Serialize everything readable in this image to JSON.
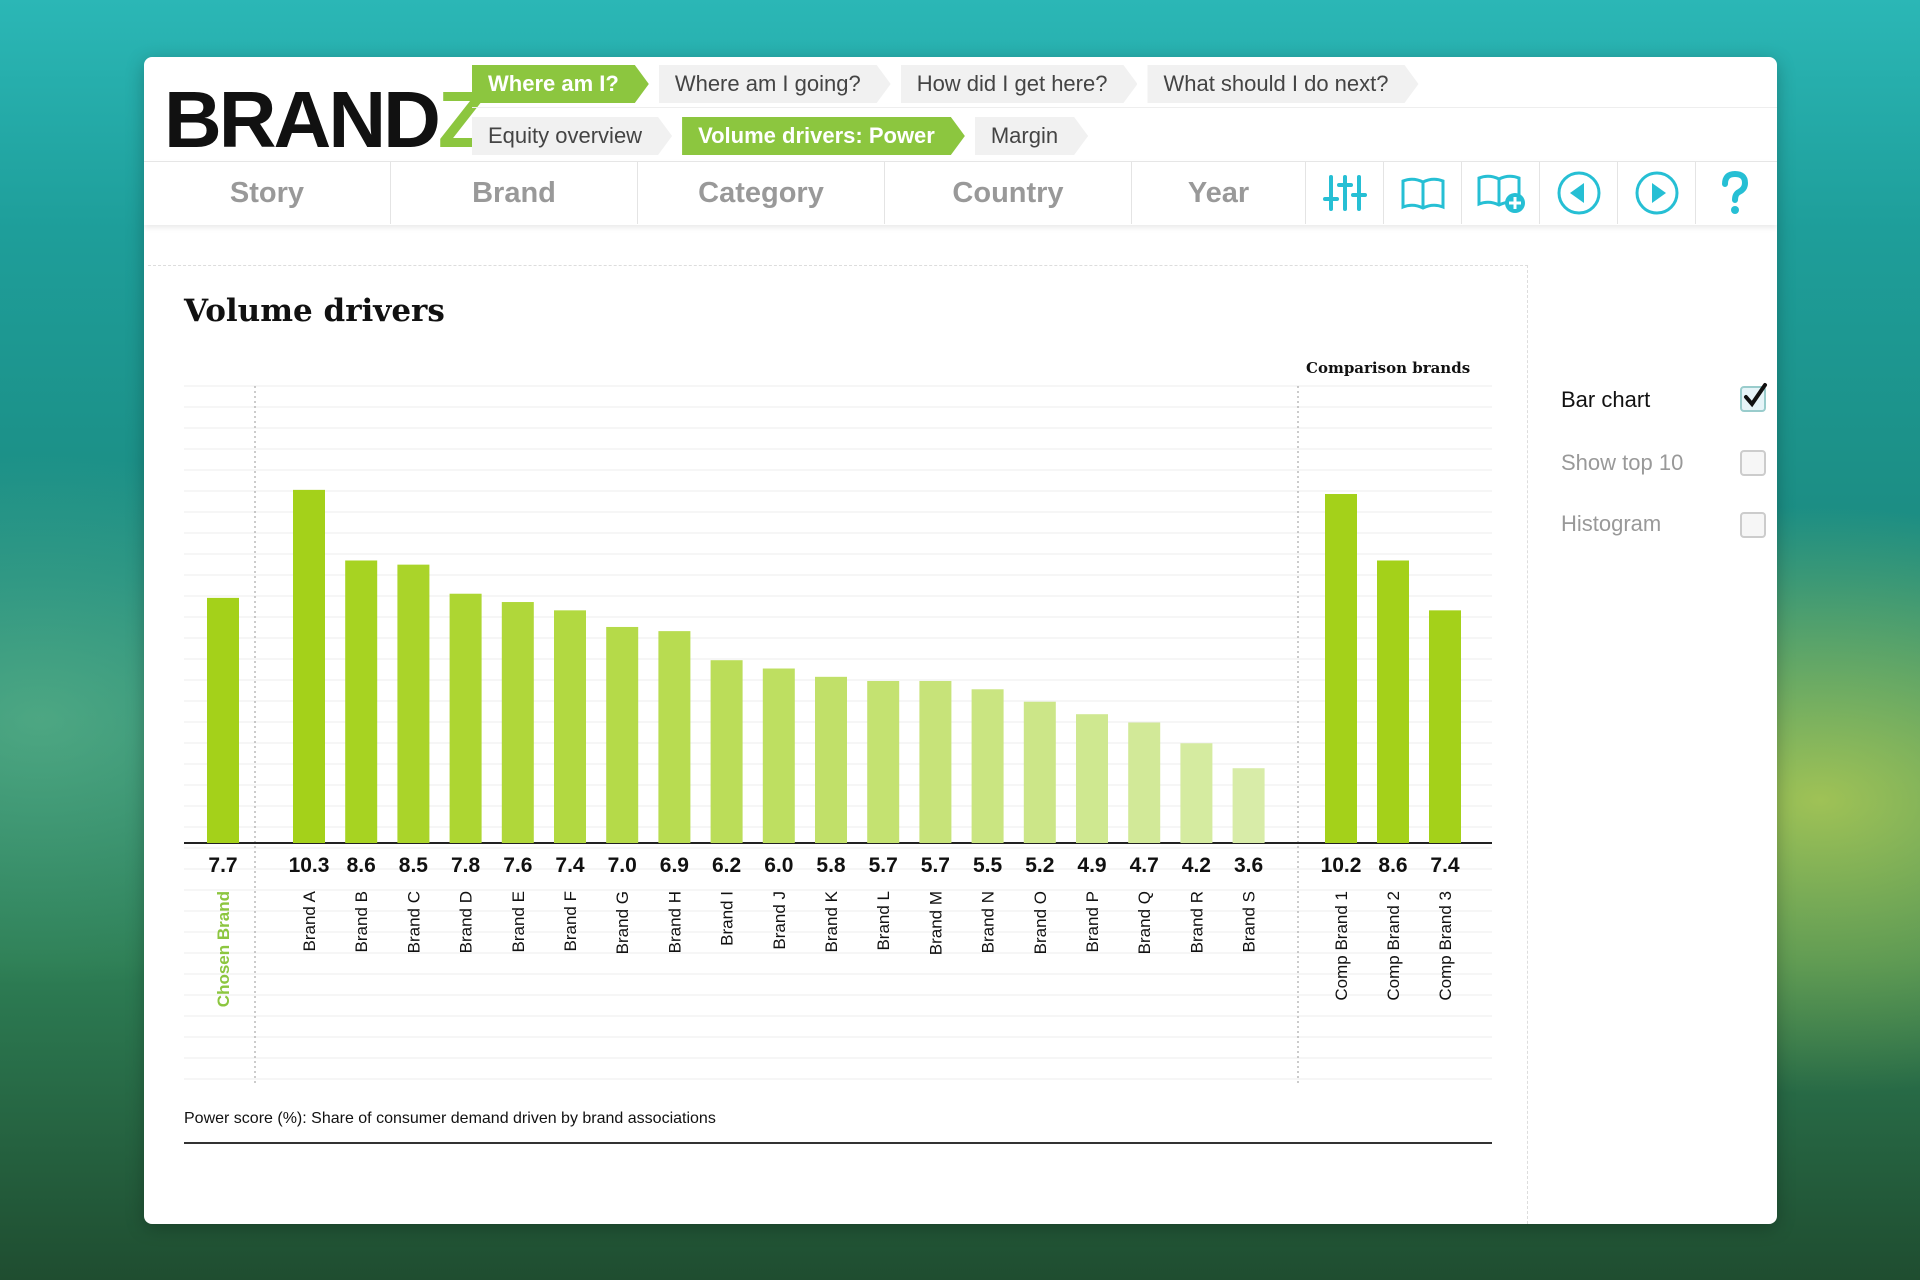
{
  "header": {
    "logo_main": "BRAND",
    "logo_accent": "Z",
    "breadcrumbs_row1": [
      "Where am I?",
      "Where am I going?",
      "How did I get here?",
      "What should I do next?"
    ],
    "breadcrumbs_row2": [
      "Equity overview",
      "Volume drivers: Power",
      "Margin"
    ]
  },
  "nav": {
    "tabs": [
      "Story",
      "Brand",
      "Category",
      "Country",
      "Year"
    ],
    "icons": [
      "sliders-icon",
      "book-icon",
      "book-add-icon",
      "previous-icon",
      "next-icon",
      "help-icon"
    ]
  },
  "panel": {
    "title": "Volume drivers",
    "comparison_title": "Comparison brands",
    "footnote": "Power score (%): Share of consumer demand driven by brand associations"
  },
  "options": {
    "bar_chart": "Bar chart",
    "show_top_10": "Show top 10",
    "histogram": "Histogram"
  },
  "colors": {
    "accent": "#8cc63f",
    "bar_strong": "#a4d11a",
    "icon": "#26bfd4"
  },
  "chart_data": {
    "type": "bar",
    "chosen": {
      "category": "Chosen Brand",
      "value": 7.7
    },
    "main": {
      "categories": [
        "Brand A",
        "Brand B",
        "Brand C",
        "Brand D",
        "Brand E",
        "Brand F",
        "Brand G",
        "Brand H",
        "Brand I",
        "Brand J",
        "Brand K",
        "Brand L",
        "Brand M",
        "Brand N",
        "Brand O",
        "Brand P",
        "Brand Q",
        "Brand R",
        "Brand S"
      ],
      "values": [
        10.3,
        8.6,
        8.5,
        7.8,
        7.6,
        7.4,
        7.0,
        6.9,
        6.2,
        6.0,
        5.8,
        5.7,
        5.7,
        5.5,
        5.2,
        4.9,
        4.7,
        4.2,
        3.6
      ],
      "labels": [
        "10.3",
        "8.6",
        "8.5",
        "7.8",
        "7.6",
        "7.4",
        "7.0",
        "6.9",
        "6.2",
        "6.0",
        "5.8",
        "5.7",
        "5.7",
        "5.5",
        "5.2",
        "4.9",
        "4.7",
        "4.2",
        "3.6"
      ]
    },
    "comparison": {
      "categories": [
        "Comp Brand 1",
        "Comp Brand 2",
        "Comp Brand 3"
      ],
      "values": [
        10.2,
        8.6,
        7.4
      ],
      "labels": [
        "10.2",
        "8.6",
        "7.4"
      ]
    },
    "chosen_label": "7.7",
    "ylim": [
      1.8,
      12.8
    ],
    "grid": true
  }
}
